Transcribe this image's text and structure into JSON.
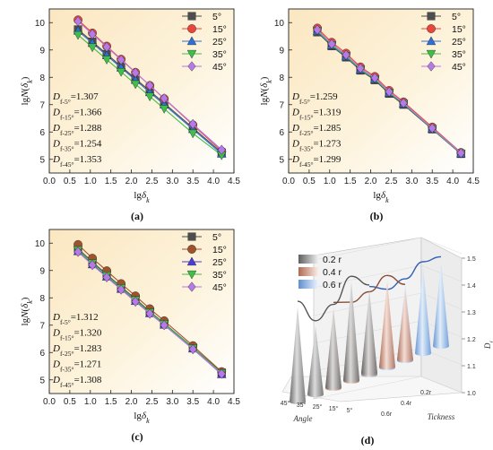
{
  "chart_data": [
    {
      "type": "line",
      "panel_label": "(a)",
      "xlabel": "lgδk",
      "ylabel": "lgN(δk)",
      "xlim": [
        0.0,
        4.5
      ],
      "ylim": [
        4.5,
        10.5
      ],
      "xticks": [
        "0.0",
        "0.5",
        "1.0",
        "1.5",
        "2.0",
        "2.5",
        "3.0",
        "3.5",
        "4.0",
        "4.5"
      ],
      "yticks": [
        "5",
        "6",
        "7",
        "8",
        "9",
        "10"
      ],
      "background": "gradient-yellow",
      "legend_position": "top-right",
      "x": [
        0.7,
        1.05,
        1.4,
        1.75,
        2.1,
        2.45,
        2.8,
        3.5,
        4.2
      ],
      "series": [
        {
          "name": "5°",
          "color": "#4d4d4d",
          "marker": "square",
          "values": [
            9.75,
            9.3,
            8.85,
            8.4,
            7.95,
            7.5,
            7.05,
            6.15,
            5.25
          ]
        },
        {
          "name": "15°",
          "color": "#e8453c",
          "marker": "circle",
          "values": [
            10.1,
            9.62,
            9.14,
            8.66,
            8.18,
            7.7,
            7.22,
            6.26,
            5.3
          ]
        },
        {
          "name": "25°",
          "color": "#2f6fd6",
          "marker": "triangle-up",
          "values": [
            9.7,
            9.25,
            8.8,
            8.35,
            7.9,
            7.45,
            7.0,
            6.1,
            5.2
          ]
        },
        {
          "name": "35°",
          "color": "#3fbf4a",
          "marker": "triangle-down",
          "values": [
            9.55,
            9.1,
            8.65,
            8.2,
            7.75,
            7.3,
            6.85,
            5.95,
            5.15
          ]
        },
        {
          "name": "45°",
          "color": "#b57ae8",
          "marker": "diamond",
          "values": [
            10.05,
            9.58,
            9.11,
            8.64,
            8.17,
            7.7,
            7.23,
            6.29,
            5.35
          ]
        }
      ],
      "annotations": [
        {
          "sub": "f-5°",
          "value": "=1.307"
        },
        {
          "sub": "f-15°",
          "value": "=1.366"
        },
        {
          "sub": "f-25°",
          "value": "=1.288"
        },
        {
          "sub": "f-35°",
          "value": "=1.254"
        },
        {
          "sub": "f-45°",
          "value": "=1.353"
        }
      ]
    },
    {
      "type": "line",
      "panel_label": "(b)",
      "xlabel": "lgδk",
      "ylabel": "lgN(δk)",
      "xlim": [
        0.0,
        4.5
      ],
      "ylim": [
        4.5,
        10.5
      ],
      "xticks": [
        "0.0",
        "0.5",
        "1.0",
        "1.5",
        "2.0",
        "2.5",
        "3.0",
        "3.5",
        "4.0",
        "4.5"
      ],
      "yticks": [
        "5",
        "6",
        "7",
        "8",
        "9",
        "10"
      ],
      "background": "gradient-yellow",
      "legend_position": "top-right",
      "x": [
        0.7,
        1.05,
        1.4,
        1.75,
        2.1,
        2.45,
        2.8,
        3.5,
        4.2
      ],
      "series": [
        {
          "name": "5°",
          "color": "#4d4d4d",
          "marker": "square",
          "values": [
            9.65,
            9.14,
            8.73,
            8.25,
            7.9,
            7.4,
            7.0,
            6.1,
            5.2
          ]
        },
        {
          "name": "15°",
          "color": "#e8453c",
          "marker": "circle",
          "values": [
            9.8,
            9.28,
            8.88,
            8.38,
            8.03,
            7.52,
            7.1,
            6.18,
            5.25
          ]
        },
        {
          "name": "25°",
          "color": "#2f6fd6",
          "marker": "triangle-up",
          "values": [
            9.68,
            9.17,
            8.76,
            8.28,
            7.93,
            7.43,
            7.03,
            6.12,
            5.21
          ]
        },
        {
          "name": "35°",
          "color": "#3fbf4a",
          "marker": "triangle-down",
          "values": [
            9.7,
            9.18,
            8.78,
            8.29,
            7.94,
            7.44,
            7.04,
            6.12,
            5.22
          ]
        },
        {
          "name": "45°",
          "color": "#b57ae8",
          "marker": "diamond",
          "values": [
            9.74,
            9.22,
            8.82,
            8.33,
            7.98,
            7.47,
            7.06,
            6.14,
            5.23
          ]
        }
      ],
      "annotations": [
        {
          "sub": "f-5°",
          "value": "=1.259"
        },
        {
          "sub": "f-15°",
          "value": "=1.319"
        },
        {
          "sub": "f-25°",
          "value": "=1.285"
        },
        {
          "sub": "f-35°",
          "value": "=1.273"
        },
        {
          "sub": "f-45°",
          "value": "=1.299"
        }
      ]
    },
    {
      "type": "line",
      "panel_label": "(c)",
      "xlabel": "lgδk",
      "ylabel": "lgN(δk)",
      "xlim": [
        0.0,
        4.5
      ],
      "ylim": [
        4.5,
        10.5
      ],
      "xticks": [
        "0.0",
        "0.5",
        "1.0",
        "1.5",
        "2.0",
        "2.5",
        "3.0",
        "3.5",
        "4.0",
        "4.5"
      ],
      "yticks": [
        "5",
        "6",
        "7",
        "8",
        "9",
        "10"
      ],
      "background": "gradient-yellow",
      "legend_position": "top-right",
      "x": [
        0.7,
        1.05,
        1.4,
        1.75,
        2.1,
        2.45,
        2.8,
        3.5,
        4.2
      ],
      "series": [
        {
          "name": "5°",
          "color": "#4d4d4d",
          "marker": "square",
          "values": [
            9.8,
            9.31,
            8.86,
            8.4,
            7.96,
            7.5,
            7.07,
            6.18,
            5.27
          ]
        },
        {
          "name": "15°",
          "color": "#a0522d",
          "marker": "circle",
          "values": [
            9.95,
            9.45,
            8.99,
            8.52,
            8.07,
            7.6,
            7.16,
            6.25,
            5.3
          ]
        },
        {
          "name": "25°",
          "color": "#4a3cd6",
          "marker": "triangle-up",
          "values": [
            9.7,
            9.22,
            8.77,
            8.32,
            7.88,
            7.43,
            7.01,
            6.14,
            5.2
          ]
        },
        {
          "name": "35°",
          "color": "#3fbf4a",
          "marker": "triangle-down",
          "values": [
            9.75,
            9.27,
            8.82,
            8.36,
            7.92,
            7.47,
            7.05,
            6.16,
            5.25
          ]
        },
        {
          "name": "45°",
          "color": "#b57ae8",
          "marker": "diamond",
          "values": [
            9.68,
            9.2,
            8.75,
            8.3,
            7.86,
            7.42,
            7.0,
            6.12,
            5.22
          ]
        }
      ],
      "annotations": [
        {
          "sub": "f-5°",
          "value": "=1.312"
        },
        {
          "sub": "f-15°",
          "value": "=1.320"
        },
        {
          "sub": "f-25°",
          "value": "=1.283"
        },
        {
          "sub": "f-35°",
          "value": "=1.271"
        },
        {
          "sub": "f-45°",
          "value": "=1.308"
        }
      ]
    },
    {
      "type": "3d-cone-bar",
      "panel_label": "(d)",
      "legend": [
        {
          "name": "0.2 r",
          "color": "#8c8c8c"
        },
        {
          "name": "0.4 r",
          "color": "#c98a70"
        },
        {
          "name": "0.6 r",
          "color": "#8fb8e6"
        }
      ],
      "axis_x_label": "Angle",
      "axis_x_ticks": [
        "45°",
        "35°",
        "25°",
        "15°",
        "5°"
      ],
      "axis_y_label": "Tickness",
      "axis_y_ticks": [
        "0.2r",
        "0.4r",
        "0.6r"
      ],
      "axis_z_label": "Df",
      "axis_z_ticks": [
        "1.0",
        "1.1",
        "1.2",
        "1.3",
        "1.4",
        "1.5"
      ],
      "zlim": [
        1.0,
        1.5
      ],
      "categories": [
        "5°",
        "15°",
        "25°",
        "35°",
        "45°"
      ],
      "series": [
        {
          "name": "0.2 r",
          "values": [
            1.307,
            1.366,
            1.288,
            1.254,
            1.353
          ]
        },
        {
          "name": "0.4 r",
          "values": [
            1.259,
            1.319,
            1.285,
            1.273,
            1.299
          ]
        },
        {
          "name": "0.6 r",
          "values": [
            1.312,
            1.32,
            1.283,
            1.271,
            1.308
          ]
        }
      ]
    }
  ]
}
